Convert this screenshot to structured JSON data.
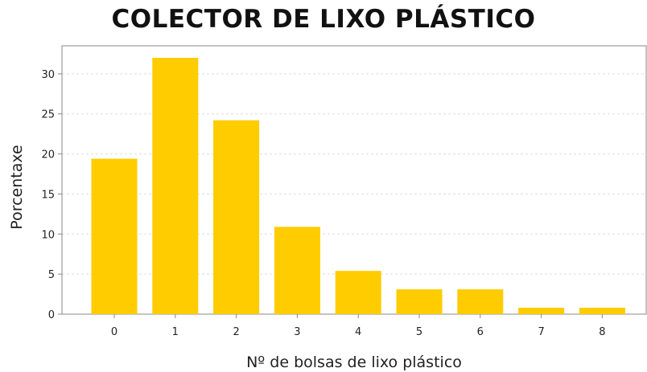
{
  "chart_data": {
    "type": "bar",
    "title": "COLECTOR DE LIXO PLÁSTICO",
    "xlabel": "Nº de bolsas de lixo plástico",
    "ylabel": "Porcentaxe",
    "categories": [
      "0",
      "1",
      "2",
      "3",
      "4",
      "5",
      "6",
      "7",
      "8"
    ],
    "values": [
      19.4,
      32.0,
      24.2,
      10.9,
      5.4,
      3.1,
      3.1,
      0.8,
      0.8
    ],
    "ylim": [
      0,
      33.5
    ],
    "yticks": [
      0,
      5,
      10,
      15,
      20,
      25,
      30
    ],
    "grid": true,
    "bar_color": "#FFCC00"
  }
}
